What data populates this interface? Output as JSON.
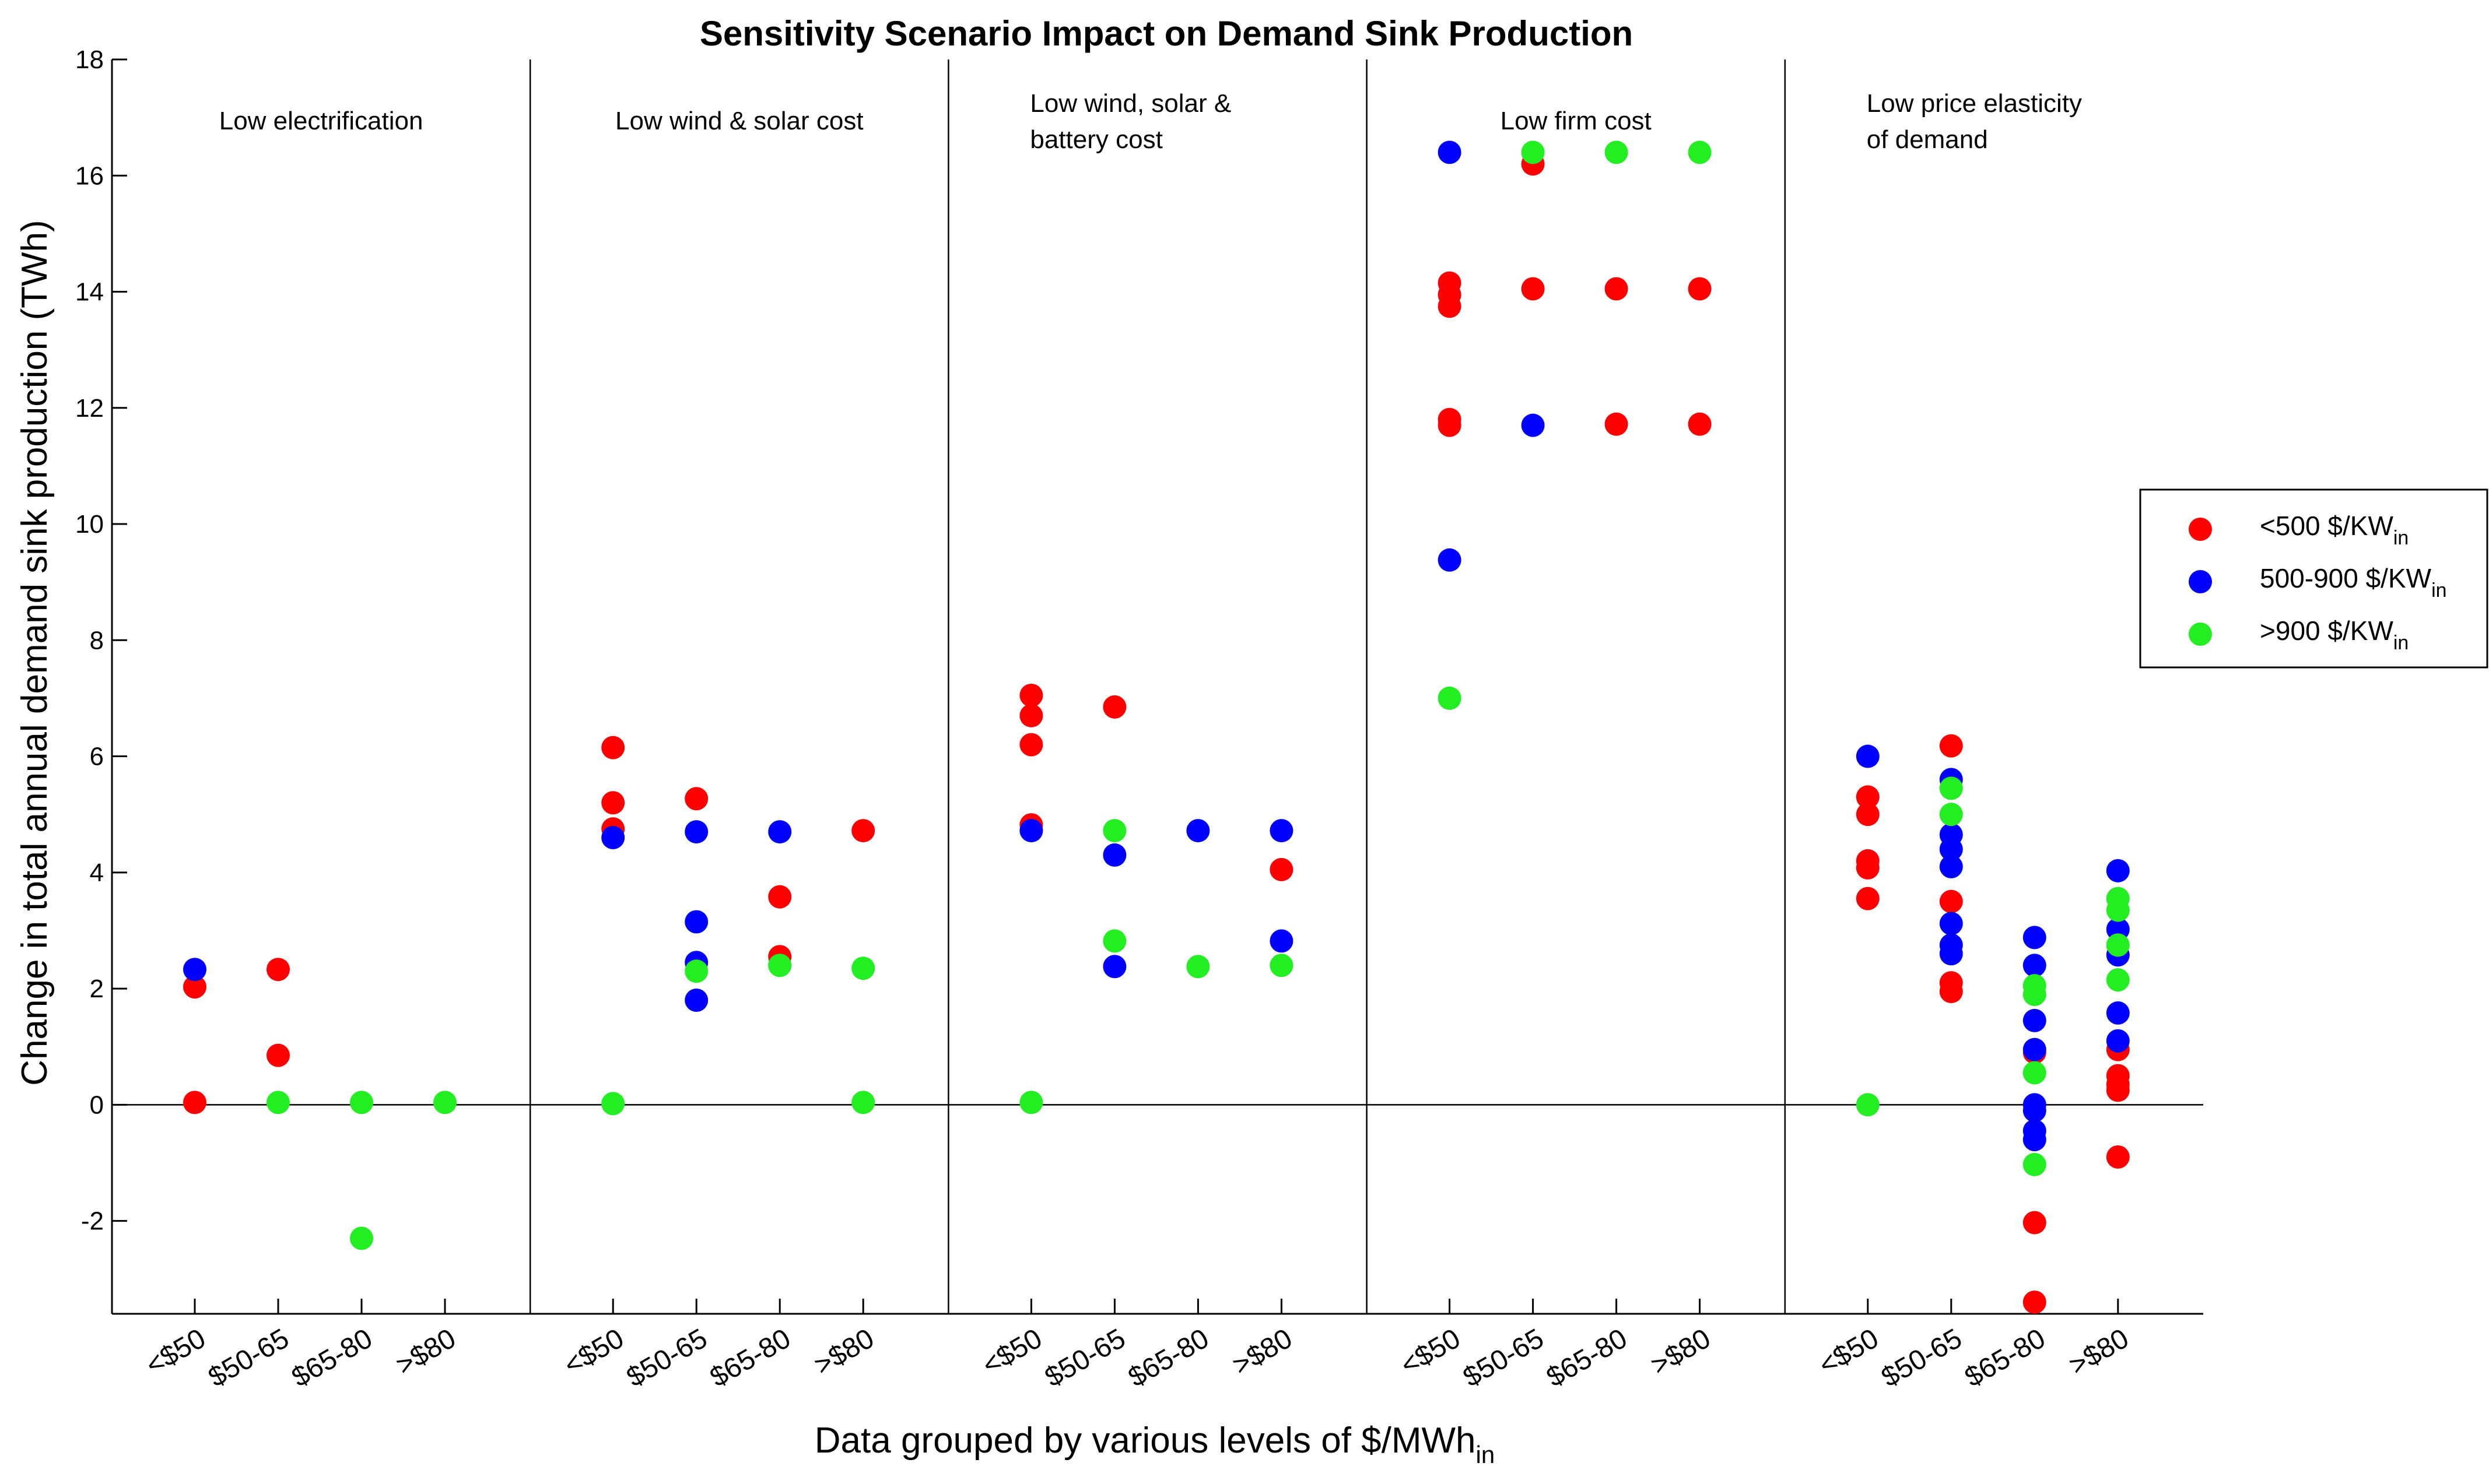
{
  "chart_data": {
    "type": "scatter",
    "title": "Sensitivity Scenario Impact on Demand Sink Production",
    "ylabel": "Change in total annual demand sink production (TWh)",
    "xlabel": "Data grouped by various levels of $/MWh",
    "xlabel_sub": "in",
    "ylim": [
      -3.6,
      18
    ],
    "yticks": [
      -2,
      0,
      2,
      4,
      6,
      8,
      10,
      12,
      14,
      16,
      18
    ],
    "categories": [
      "<$50",
      "$50-65",
      "$65-80",
      ">$80"
    ],
    "colors": {
      "red": "#ff0000",
      "blue": "#0000ff",
      "green": "#22ee22"
    },
    "legend": {
      "position": "right",
      "entries": [
        {
          "key": "red",
          "label": "<500 $/KW",
          "sub": "in"
        },
        {
          "key": "blue",
          "label": "500-900 $/KW",
          "sub": "in"
        },
        {
          "key": "green",
          "label": ">900 $/KW",
          "sub": "in"
        }
      ]
    },
    "panels": [
      {
        "label_lines": [
          "Low electrification"
        ],
        "groups": [
          {
            "red": [
              2.03,
              0.04
            ],
            "blue": [
              2.33
            ],
            "green": []
          },
          {
            "red": [
              2.33,
              0.85
            ],
            "blue": [],
            "green": [
              0.04
            ]
          },
          {
            "red": [],
            "blue": [],
            "green": [
              0.04,
              -2.3
            ]
          },
          {
            "red": [],
            "blue": [],
            "green": [
              0.04
            ]
          }
        ]
      },
      {
        "label_lines": [
          "Low wind & solar cost"
        ],
        "groups": [
          {
            "red": [
              6.15,
              5.2,
              4.75
            ],
            "blue": [
              4.6
            ],
            "green": [
              0.02
            ]
          },
          {
            "red": [
              5.27
            ],
            "blue": [
              4.7,
              3.15,
              2.45,
              1.8
            ],
            "green": [
              2.3
            ]
          },
          {
            "red": [
              3.58,
              2.55
            ],
            "blue": [
              4.7
            ],
            "green": [
              2.4
            ]
          },
          {
            "red": [
              4.72
            ],
            "blue": [],
            "green": [
              2.35,
              0.04
            ]
          }
        ]
      },
      {
        "label_lines": [
          "Low wind, solar &",
          "battery cost"
        ],
        "groups": [
          {
            "red": [
              7.05,
              6.7,
              6.2,
              4.82
            ],
            "blue": [
              4.72
            ],
            "green": [
              0.04
            ]
          },
          {
            "red": [
              6.85
            ],
            "blue": [
              4.3,
              2.38
            ],
            "green": [
              4.72,
              2.82
            ]
          },
          {
            "red": [],
            "blue": [
              4.72
            ],
            "green": [
              2.38
            ]
          },
          {
            "red": [
              4.05
            ],
            "blue": [
              4.72,
              2.82
            ],
            "green": [
              2.4
            ]
          }
        ]
      },
      {
        "label_lines": [
          "Low firm cost"
        ],
        "groups": [
          {
            "red": [
              14.15,
              13.95,
              13.75,
              11.8,
              11.7
            ],
            "blue": [
              16.4,
              9.38
            ],
            "green": [
              7.0
            ]
          },
          {
            "red": [
              16.2,
              14.05
            ],
            "blue": [
              11.7
            ],
            "green": [
              16.4
            ]
          },
          {
            "red": [
              14.05,
              11.72
            ],
            "blue": [],
            "green": [
              16.4
            ]
          },
          {
            "red": [
              14.05,
              11.72
            ],
            "blue": [],
            "green": [
              16.4
            ]
          }
        ]
      },
      {
        "label_lines": [
          "Low price elasticity",
          "of demand"
        ],
        "groups": [
          {
            "red": [
              5.3,
              5.0,
              4.2,
              4.08,
              3.55
            ],
            "blue": [
              6.0
            ],
            "green": [
              0.0
            ]
          },
          {
            "red": [
              6.18,
              3.5,
              2.1,
              1.95
            ],
            "blue": [
              5.6,
              4.65,
              4.4,
              4.1,
              3.12,
              2.75,
              2.6
            ],
            "green": [
              5.45,
              5.0
            ]
          },
          {
            "red": [
              0.9,
              -2.03,
              -3.4
            ],
            "blue": [
              2.88,
              2.4,
              1.45,
              0.95,
              0.0,
              -0.1,
              -0.45,
              -0.6
            ],
            "green": [
              2.05,
              1.9,
              0.55,
              -1.03
            ]
          },
          {
            "red": [
              0.95,
              0.5,
              0.35,
              0.25,
              -0.9
            ],
            "blue": [
              4.03,
              3.02,
              2.58,
              1.58,
              1.1
            ],
            "green": [
              3.55,
              3.35,
              2.75,
              2.15
            ]
          }
        ]
      }
    ]
  }
}
